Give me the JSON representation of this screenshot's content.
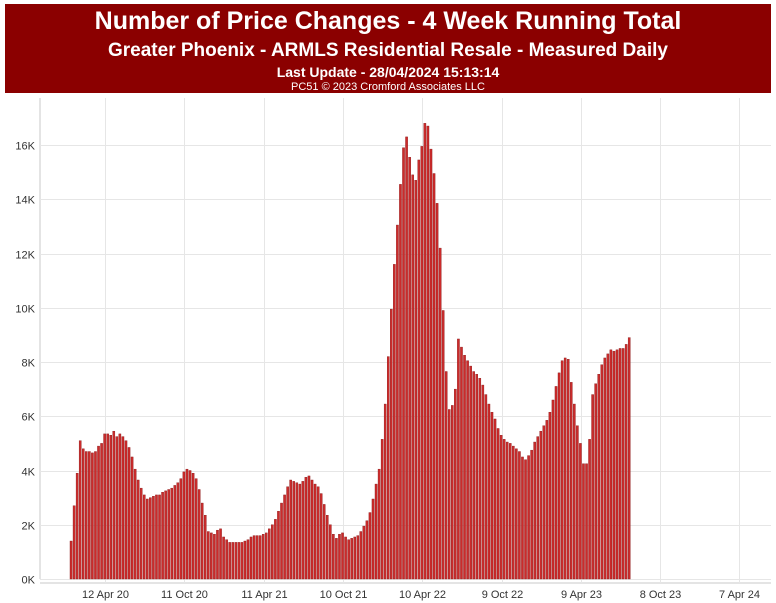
{
  "header": {
    "title": "Number of Price Changes - 4 Week Running Total",
    "subtitle": "Greater Phoenix - ARMLS Residential Resale - Measured Daily",
    "last_update": "Last Update - 28/04/2024 15:13:14",
    "copyright": "PC51 © 2023 Cromford Associates LLC"
  },
  "colors": {
    "banner": "#8b0000",
    "bar": "#cc2b2b",
    "bar_edge": "#8a1a1a",
    "grid": "#e6e6e6"
  },
  "chart_data": {
    "type": "bar",
    "title": "Number of Price Changes - 4 Week Running Total",
    "subtitle": "Greater Phoenix - ARMLS Residential Resale - Measured Daily",
    "xlabel": "",
    "ylabel": "",
    "ylim": [
      0,
      17200
    ],
    "grid": true,
    "legend": "none",
    "y_ticks": [
      {
        "value": 0,
        "label": "0K"
      },
      {
        "value": 2000,
        "label": "2K"
      },
      {
        "value": 4000,
        "label": "4K"
      },
      {
        "value": 6000,
        "label": "6K"
      },
      {
        "value": 8000,
        "label": "8K"
      },
      {
        "value": 10000,
        "label": "10K"
      },
      {
        "value": 12000,
        "label": "12K"
      },
      {
        "value": 14000,
        "label": "14K"
      },
      {
        "value": 16000,
        "label": "16K"
      }
    ],
    "x_ticks": [
      {
        "label": "12 Apr 20",
        "index": 11
      },
      {
        "label": "11 Oct 20",
        "index": 37
      },
      {
        "label": "11 Apr 21",
        "index": 63
      },
      {
        "label": "10 Oct 21",
        "index": 89
      },
      {
        "label": "10 Apr 22",
        "index": 115
      },
      {
        "label": "9 Oct 22",
        "index": 141
      },
      {
        "label": "9 Apr 23",
        "index": 167
      },
      {
        "label": "8 Oct 23",
        "index": 193
      },
      {
        "label": "7 Apr 24",
        "index": 219
      }
    ],
    "values": [
      1400,
      2700,
      3900,
      5100,
      4800,
      4700,
      4700,
      4650,
      4700,
      4900,
      5000,
      5350,
      5350,
      5300,
      5450,
      5250,
      5350,
      5250,
      5100,
      4850,
      4500,
      4050,
      3650,
      3350,
      3100,
      2950,
      3000,
      3050,
      3100,
      3100,
      3200,
      3250,
      3300,
      3350,
      3450,
      3550,
      3700,
      3950,
      4050,
      4000,
      3900,
      3700,
      3300,
      2800,
      2350,
      1750,
      1700,
      1650,
      1800,
      1850,
      1550,
      1450,
      1350,
      1350,
      1350,
      1350,
      1350,
      1400,
      1450,
      1550,
      1600,
      1600,
      1600,
      1650,
      1700,
      1850,
      2000,
      2200,
      2500,
      2800,
      3100,
      3400,
      3650,
      3600,
      3550,
      3500,
      3600,
      3750,
      3800,
      3650,
      3500,
      3400,
      3150,
      2750,
      2350,
      2000,
      1650,
      1500,
      1650,
      1700,
      1550,
      1450,
      1500,
      1550,
      1600,
      1750,
      1950,
      2150,
      2450,
      2950,
      3500,
      4050,
      5150,
      6450,
      8200,
      9950,
      11600,
      13050,
      14550,
      15900,
      16300,
      15550,
      14900,
      14700,
      15450,
      15950,
      16800,
      16700,
      15850,
      14950,
      13850,
      12200,
      9900,
      7650,
      6250,
      6400,
      7000,
      8850,
      8550,
      8250,
      8050,
      7850,
      7650,
      7550,
      7400,
      7150,
      6800,
      6450,
      6150,
      5900,
      5550,
      5300,
      5150,
      5050,
      5000,
      4900,
      4800,
      4700,
      4500,
      4400,
      4550,
      4750,
      5050,
      5250,
      5450,
      5650,
      5850,
      6150,
      6600,
      7100,
      7600,
      8050,
      8150,
      8100,
      7250,
      6450,
      5650,
      5000,
      4250,
      4250,
      5150,
      6800,
      7200,
      7550,
      7900,
      8150,
      8300,
      8450,
      8400,
      8450,
      8500,
      8500,
      8650,
      8900
    ]
  }
}
